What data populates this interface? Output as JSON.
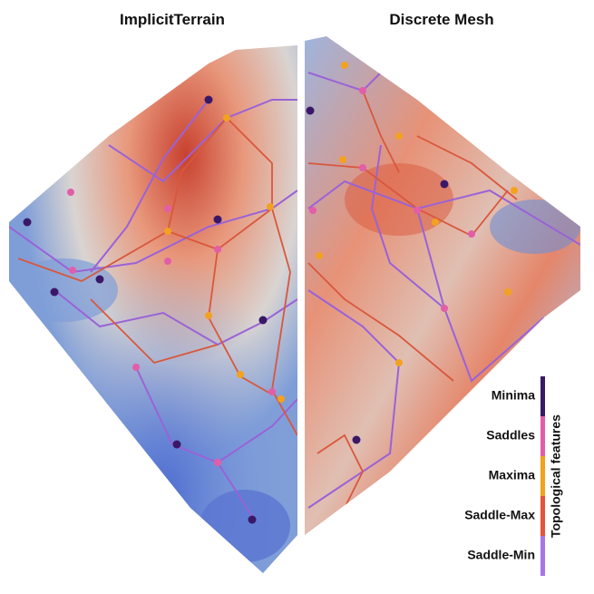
{
  "titles": {
    "left": "ImplicitTerrain",
    "right": "Discrete Mesh"
  },
  "legend": {
    "title": "Topological features",
    "items": [
      {
        "label": "Minima",
        "color": "#3a1868"
      },
      {
        "label": "Saddles",
        "color": "#e25ea8"
      },
      {
        "label": "Maxima",
        "color": "#f2a21e"
      },
      {
        "label": "Saddle-Max",
        "color": "#e2553a"
      },
      {
        "label": "Saddle-Min",
        "color": "#a874e6"
      }
    ]
  }
}
